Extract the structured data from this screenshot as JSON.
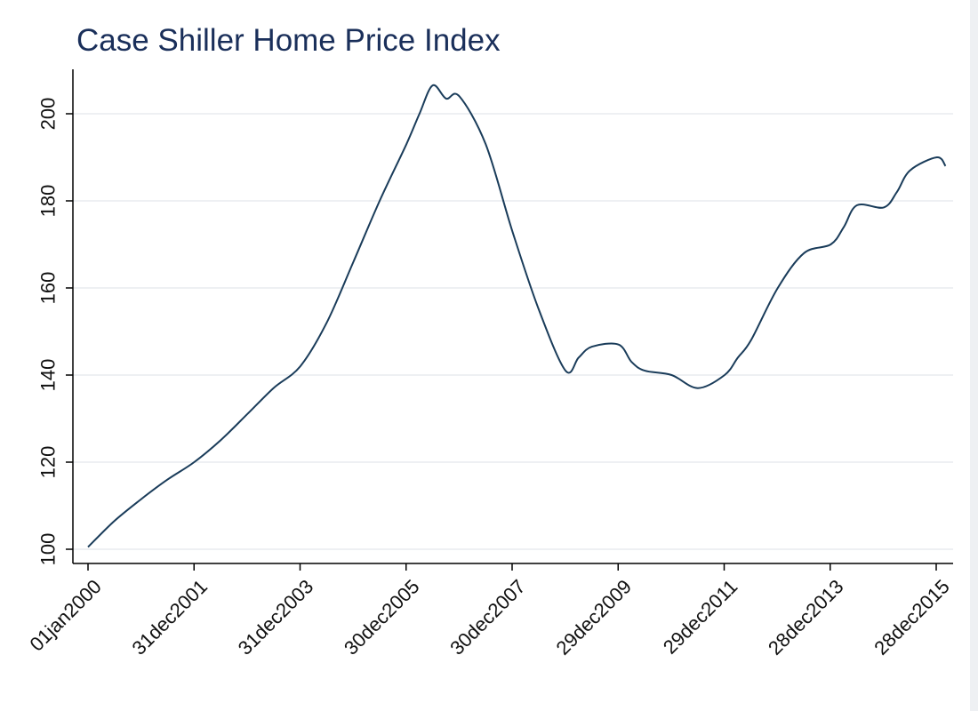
{
  "chart_data": {
    "type": "line",
    "title": "Case Shiller Home Price Index",
    "xlabel": "",
    "ylabel": "",
    "x_ticks": [
      "01jan2000",
      "31dec2001",
      "31dec2003",
      "30dec2005",
      "30dec2007",
      "29dec2009",
      "29dec2011",
      "28dec2013",
      "28dec2015"
    ],
    "y_ticks": [
      "100",
      "120",
      "140",
      "160",
      "180",
      "200"
    ],
    "ylim": [
      97,
      210
    ],
    "xlim": [
      "2000-01-01",
      "2016-03-31"
    ],
    "grid": "horizontal",
    "line_color": "#1a3c5a",
    "series": [
      {
        "x": [
          "2000-01-01",
          "2000-07-01",
          "2001-01-01",
          "2001-07-01",
          "2002-01-01",
          "2002-07-01",
          "2003-01-01",
          "2003-07-01",
          "2004-01-01",
          "2004-07-01",
          "2005-01-01",
          "2005-07-01",
          "2006-01-01",
          "2006-04-01",
          "2006-07-01",
          "2006-10-01",
          "2007-01-01",
          "2007-07-01",
          "2008-01-01",
          "2008-07-01",
          "2009-01-01",
          "2009-04-01",
          "2009-07-01",
          "2010-01-01",
          "2010-04-01",
          "2010-07-01",
          "2011-01-01",
          "2011-07-01",
          "2012-01-01",
          "2012-04-01",
          "2012-07-01",
          "2013-01-01",
          "2013-07-01",
          "2014-01-01",
          "2014-04-01",
          "2014-07-01",
          "2015-01-01",
          "2015-04-01",
          "2015-07-01",
          "2016-01-01",
          "2016-03-01"
        ],
        "values": [
          100.5,
          106.5,
          111.5,
          116,
          120,
          125,
          131,
          137,
          142,
          152,
          166,
          180,
          193,
          200,
          206.5,
          203.5,
          204,
          193,
          173,
          155,
          141,
          144,
          146.5,
          147,
          143,
          141,
          140,
          137,
          140,
          144,
          148,
          160,
          168,
          170,
          174,
          179,
          178.5,
          182,
          187,
          190,
          188
        ]
      }
    ]
  }
}
